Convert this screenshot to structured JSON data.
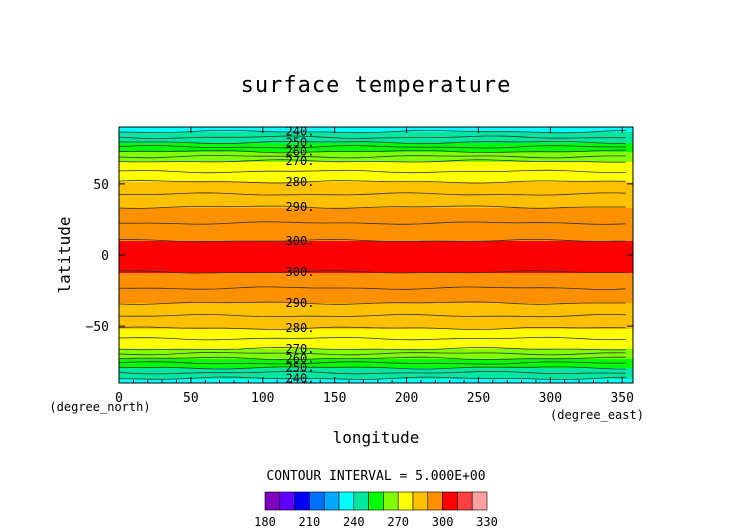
{
  "chart_data": {
    "type": "heatmap",
    "title": "surface temperature",
    "xlabel": "longitude",
    "ylabel": "latitude",
    "x_unit": "(degree_east)",
    "y_unit": "(degree_north)",
    "xlim": [
      0,
      357.5
    ],
    "ylim": [
      -90,
      90
    ],
    "x_ticks": [
      "0",
      "50",
      "100",
      "150",
      "200",
      "250",
      "300",
      "350"
    ],
    "y_ticks": [
      "50",
      "0",
      "−50"
    ],
    "contour_interval_text": "CONTOUR INTERVAL = 5.000E+00",
    "contour_interval": 5,
    "contour_labels_north": [
      "240.",
      "250.",
      "260.",
      "270.",
      "280.",
      "290.",
      "300."
    ],
    "contour_labels_south": [
      "300.",
      "290.",
      "280.",
      "270.",
      "260.",
      "250.",
      "240."
    ],
    "temperature_bands": [
      {
        "lat_from": 90,
        "lat_to": 82,
        "min": 235,
        "max": 245
      },
      {
        "lat_from": 82,
        "lat_to": 68,
        "min": 245,
        "max": 265
      },
      {
        "lat_from": 68,
        "lat_to": 42,
        "min": 265,
        "max": 285
      },
      {
        "lat_from": 42,
        "lat_to": 10,
        "min": 285,
        "max": 300
      },
      {
        "lat_from": 10,
        "lat_to": -12,
        "min": 300,
        "max": 305
      },
      {
        "lat_from": -12,
        "lat_to": -42,
        "min": 285,
        "max": 300
      },
      {
        "lat_from": -42,
        "lat_to": -66,
        "min": 265,
        "max": 285
      },
      {
        "lat_from": -66,
        "lat_to": -82,
        "min": 245,
        "max": 265
      },
      {
        "lat_from": -82,
        "lat_to": -90,
        "min": 235,
        "max": 245
      }
    ],
    "colorbar": {
      "ticks": [
        "180",
        "210",
        "240",
        "270",
        "300",
        "330"
      ],
      "range": [
        180,
        330
      ],
      "colors": [
        "#8000c0",
        "#6000ff",
        "#0000ff",
        "#0070ff",
        "#00a8ff",
        "#00ffff",
        "#00e8a0",
        "#00ff00",
        "#80ff00",
        "#ffff00",
        "#ffc000",
        "#ff9000",
        "#ff0000",
        "#ff4040",
        "#ffa0a0"
      ]
    }
  }
}
